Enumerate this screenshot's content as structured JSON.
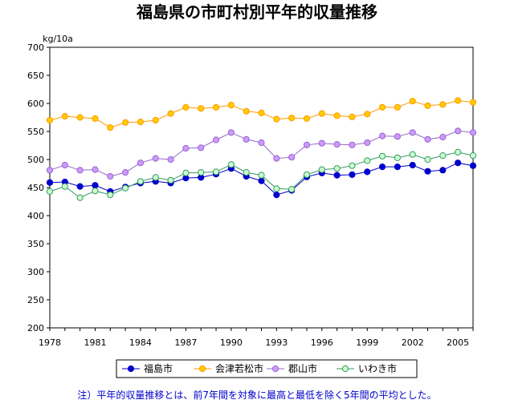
{
  "chart_data": {
    "type": "line",
    "title": "福島県の市町村別平年的収量推移",
    "ylabel": "kg/10a",
    "xlabel": "",
    "ylim": [
      200,
      700
    ],
    "yticks": [
      200,
      250,
      300,
      350,
      400,
      450,
      500,
      550,
      600,
      650,
      700
    ],
    "x": [
      1978,
      1979,
      1980,
      1981,
      1982,
      1983,
      1984,
      1985,
      1986,
      1987,
      1988,
      1989,
      1990,
      1991,
      1992,
      1993,
      1994,
      1995,
      1996,
      1997,
      1998,
      1999,
      2000,
      2001,
      2002,
      2003,
      2004,
      2005,
      2006
    ],
    "xtick_labels": [
      "1978",
      "1981",
      "1984",
      "1987",
      "1990",
      "1993",
      "1996",
      "1999",
      "2002",
      "2005"
    ],
    "xtick_values": [
      1978,
      1981,
      1984,
      1987,
      1990,
      1993,
      1996,
      1999,
      2002,
      2005
    ],
    "grid": false,
    "legend_position": "bottom",
    "series": [
      {
        "name": "福島市",
        "color": "#0000cc",
        "marker_fill": "#0000cc",
        "values": [
          459,
          460,
          452,
          454,
          443,
          451,
          458,
          461,
          458,
          467,
          468,
          474,
          484,
          470,
          462,
          437,
          445,
          469,
          476,
          472,
          473,
          478,
          487,
          487,
          490,
          479,
          481,
          494,
          489
        ]
      },
      {
        "name": "会津若松市",
        "color": "#ff9900",
        "marker_fill": "#ffcc00",
        "values": [
          570,
          577,
          575,
          573,
          557,
          566,
          567,
          570,
          582,
          593,
          591,
          593,
          597,
          586,
          583,
          572,
          574,
          573,
          582,
          578,
          576,
          581,
          593,
          593,
          604,
          596,
          598,
          605,
          602
        ]
      },
      {
        "name": "郡山市",
        "color": "#9966cc",
        "marker_fill": "#cc99ff",
        "values": [
          481,
          490,
          481,
          482,
          470,
          477,
          494,
          502,
          500,
          520,
          521,
          535,
          548,
          536,
          530,
          502,
          504,
          526,
          529,
          527,
          526,
          530,
          542,
          541,
          548,
          536,
          540,
          551,
          548
        ]
      },
      {
        "name": "いわき市",
        "color": "#339966",
        "marker_fill": "#ccffcc",
        "values": [
          443,
          452,
          432,
          444,
          437,
          449,
          461,
          468,
          463,
          476,
          477,
          478,
          491,
          477,
          472,
          448,
          447,
          473,
          482,
          484,
          489,
          498,
          506,
          503,
          509,
          500,
          507,
          513,
          507
        ]
      }
    ]
  },
  "footnote": "注）平年的収量推移とは、前7年間を対象に最高と最低を除く5年間の平均とした。"
}
